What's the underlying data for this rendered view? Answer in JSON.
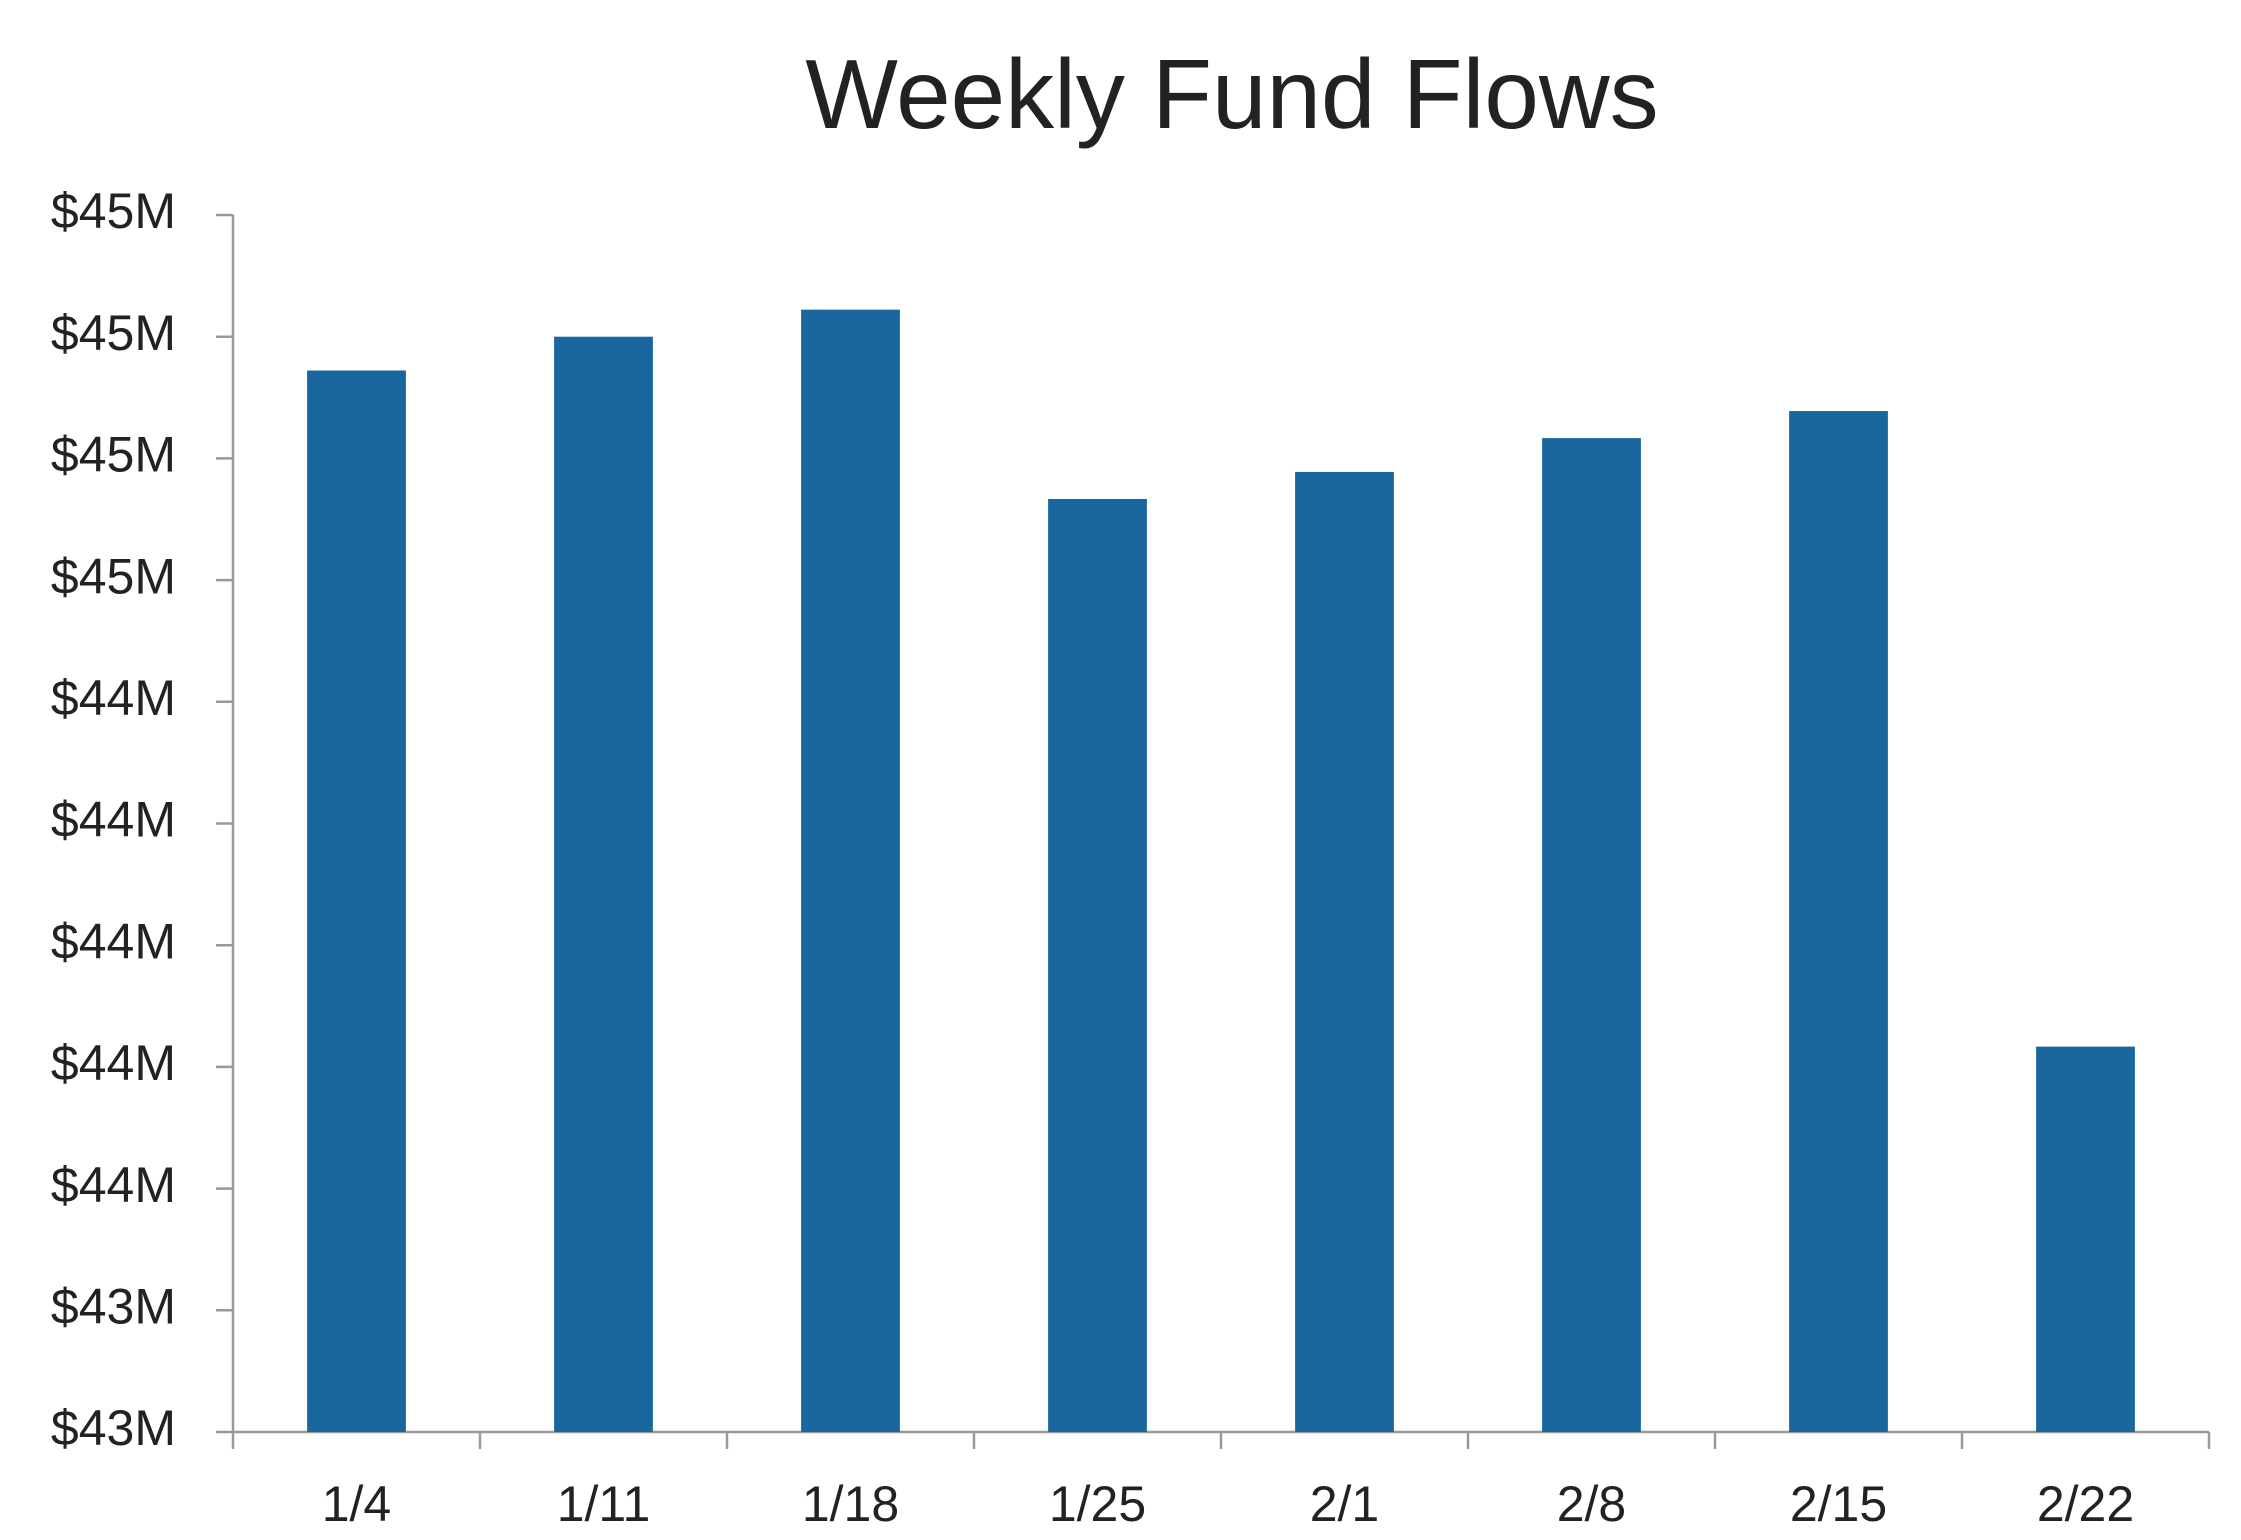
{
  "chart_data": {
    "type": "bar",
    "title": "Weekly Fund Flows",
    "categories": [
      "1/4",
      "1/11",
      "1/18",
      "1/25",
      "2/1",
      "2/8",
      "2/15",
      "2/22"
    ],
    "values": [
      44.82,
      44.87,
      44.91,
      44.63,
      44.67,
      44.72,
      44.76,
      43.82
    ],
    "color": "#1a67a0",
    "ylim": [
      43.25,
      45.05
    ],
    "yticks": [
      {
        "value": 43.25,
        "label": "$43M"
      },
      {
        "value": 43.43,
        "label": "$43M"
      },
      {
        "value": 43.61,
        "label": "$44M"
      },
      {
        "value": 43.79,
        "label": "$44M"
      },
      {
        "value": 43.97,
        "label": "$44M"
      },
      {
        "value": 44.15,
        "label": "$44M"
      },
      {
        "value": 44.33,
        "label": "$44M"
      },
      {
        "value": 44.51,
        "label": "$45M"
      },
      {
        "value": 44.69,
        "label": "$45M"
      },
      {
        "value": 44.87,
        "label": "$45M"
      },
      {
        "value": 45.05,
        "label": "$45M"
      }
    ],
    "grid": false
  }
}
